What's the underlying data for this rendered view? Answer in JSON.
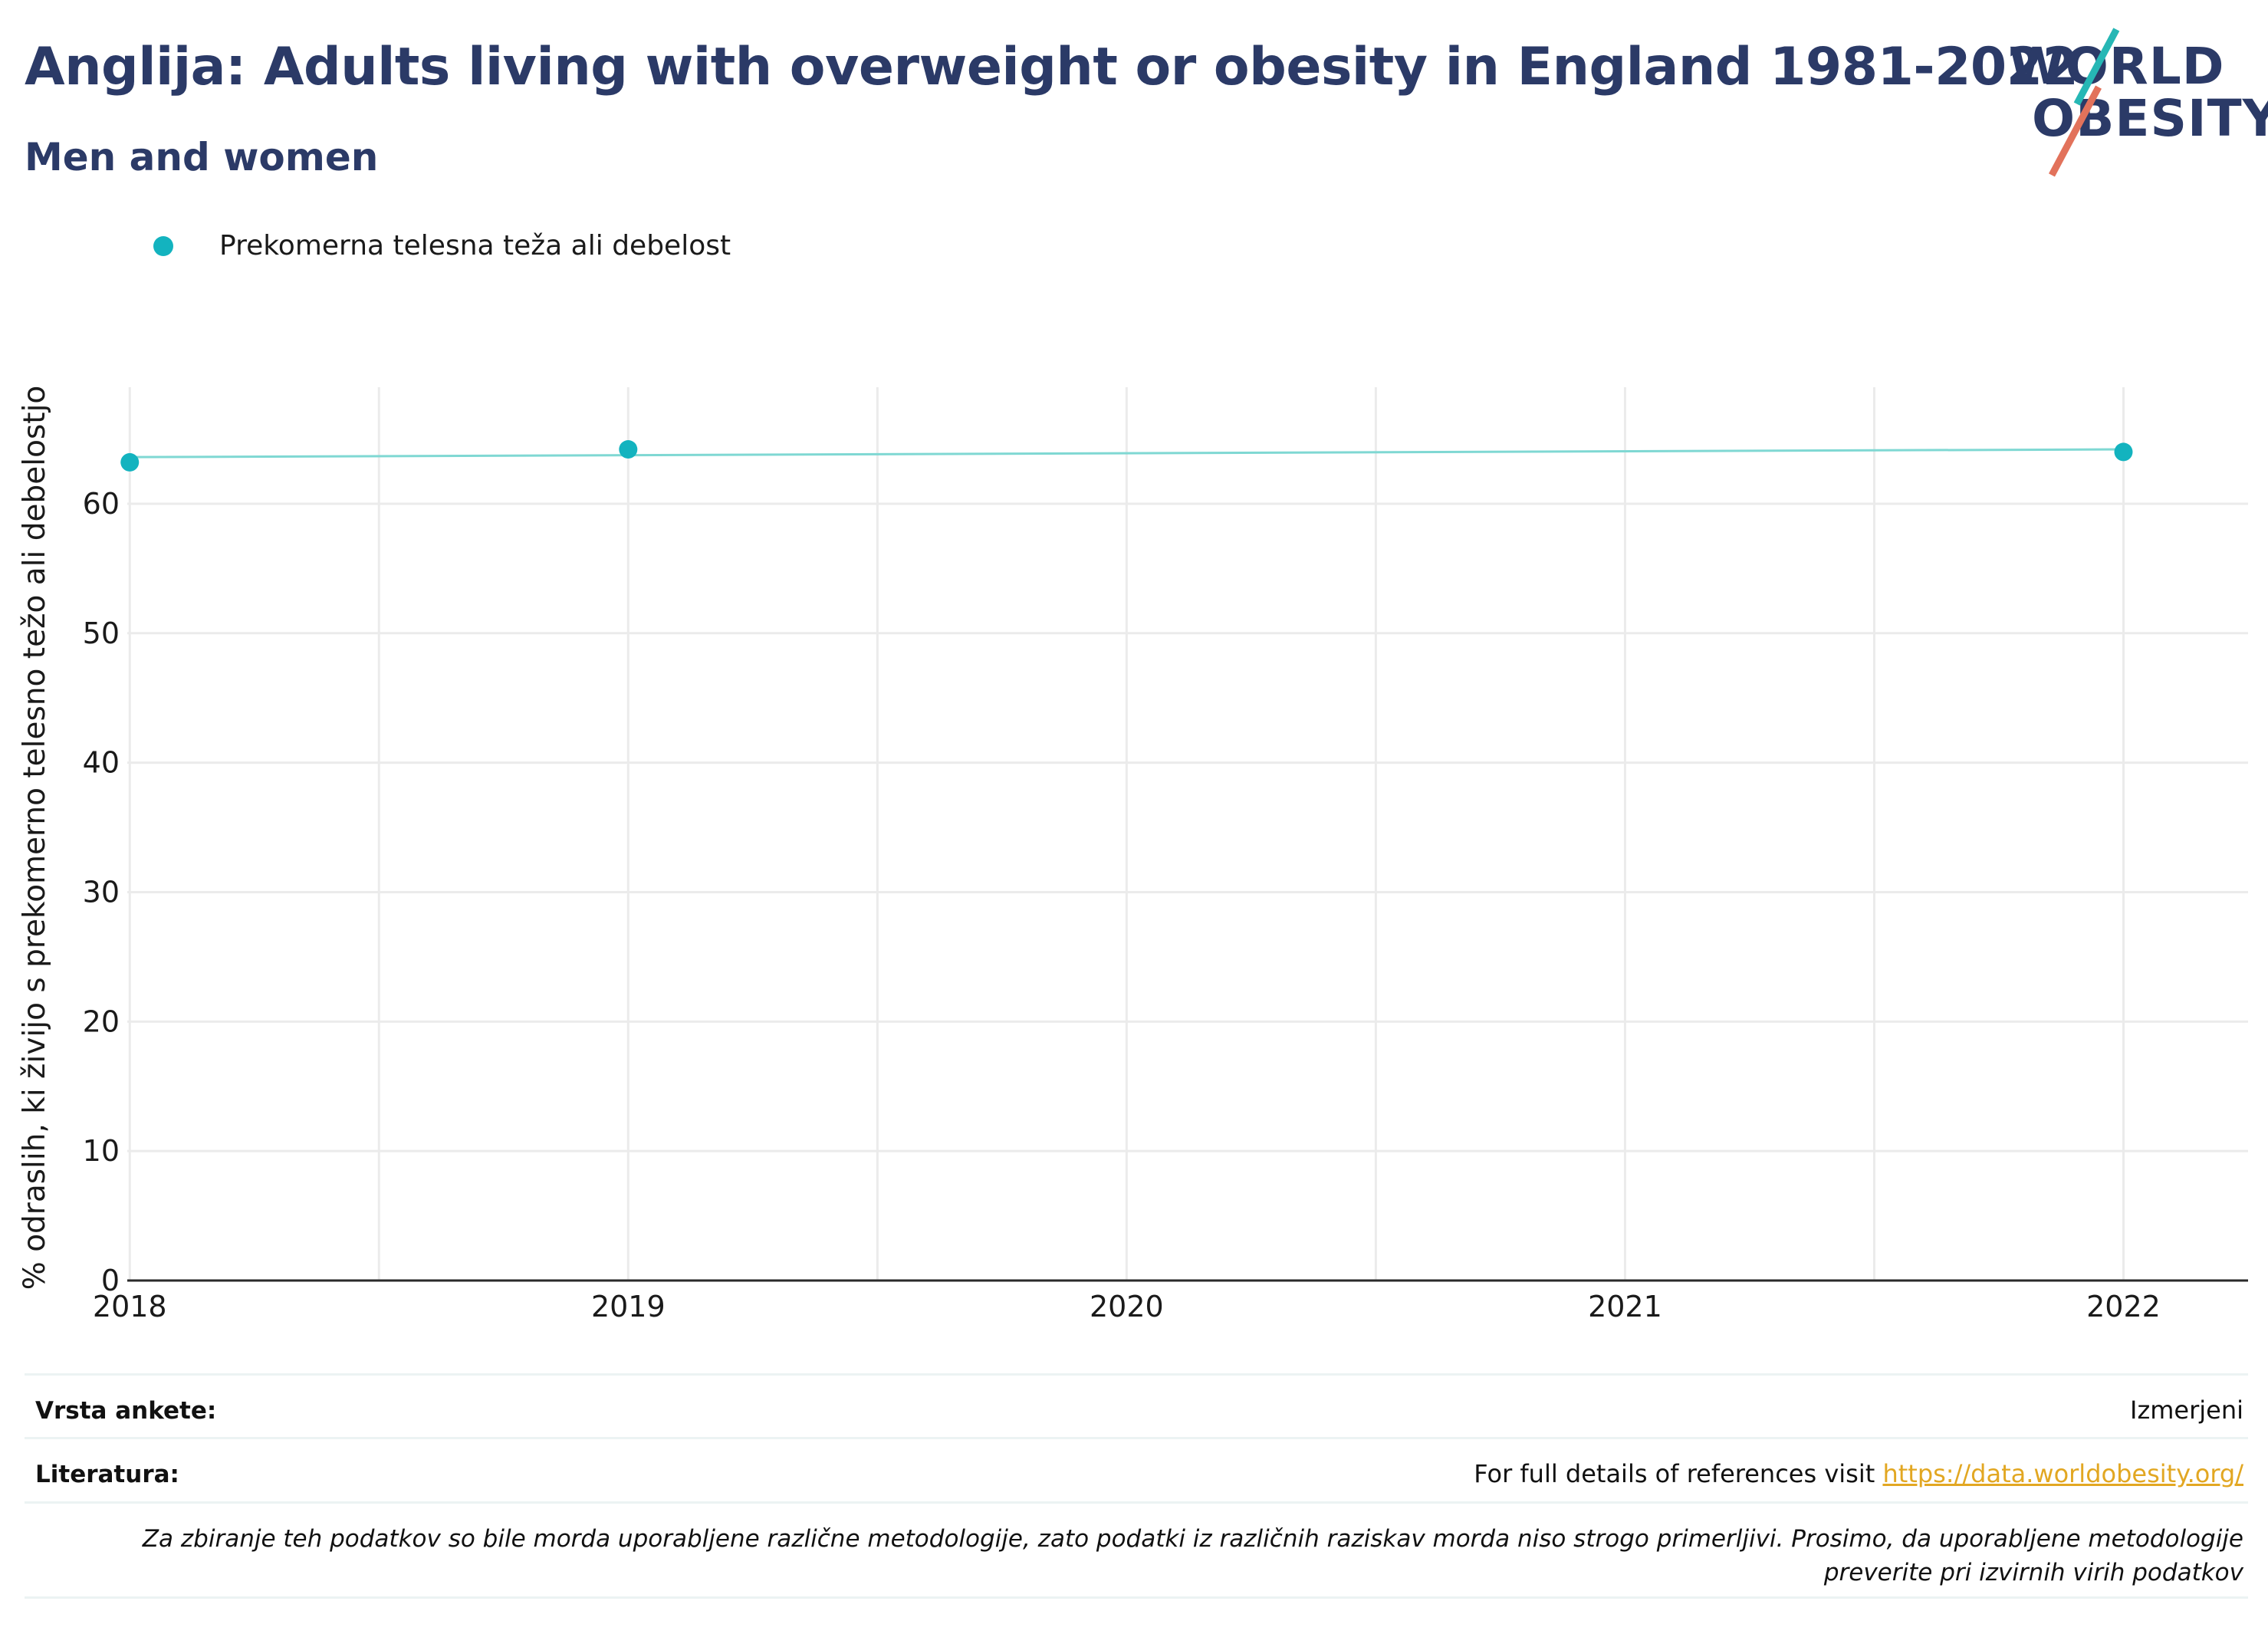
{
  "header": {
    "title": "Anglija: Adults living with overweight or obesity in England 1981-2022",
    "subtitle": "Men and women"
  },
  "logo": {
    "line1": "WORLD",
    "line2": "OBESITY",
    "colors": {
      "text": "#2b3a67",
      "teal": "#26b7b5",
      "red": "#e2725b"
    }
  },
  "legend": {
    "items": [
      {
        "label": "Prekomerna telesna teža ali debelost",
        "color": "#13b3bf"
      }
    ]
  },
  "chart_data": {
    "type": "scatter",
    "title": "Anglija: Adults living with overweight or obesity in England 1981-2022",
    "subtitle": "Men and women",
    "xlabel": "",
    "ylabel": "% odraslih, ki živijo s prekomerno telesno težo ali debelostjo",
    "xlim": [
      2017.995,
      2022.25
    ],
    "ylim": [
      0,
      69
    ],
    "x_ticks": [
      "2018",
      "2019",
      "2020",
      "2021",
      "2022"
    ],
    "y_ticks": [
      "0",
      "10",
      "20",
      "30",
      "40",
      "50",
      "60"
    ],
    "grid": true,
    "legend_position": "top-left",
    "series": [
      {
        "name": "Prekomerna telesna teža ali debelost",
        "color": "#13b3bf",
        "points": [
          {
            "x": 2018,
            "y": 63.2
          },
          {
            "x": 2019,
            "y": 64.2
          },
          {
            "x": 2022,
            "y": 64.0
          }
        ],
        "trendline": {
          "color": "#7fd8d3",
          "start": {
            "x": 2018,
            "y": 63.6
          },
          "end": {
            "x": 2022,
            "y": 64.2
          }
        }
      }
    ]
  },
  "footer": {
    "survey_label": "Vrsta ankete:",
    "survey_value": "Izmerjeni",
    "references_label": "Literatura:",
    "references_text": "For full details of references visit ",
    "references_link": "https://data.worldobesity.org/",
    "note": "Za zbiranje teh podatkov so bile morda uporabljene različne metodologije, zato podatki iz različnih raziskav morda niso strogo primerljivi. Prosimo, da uporabljene metodologije preverite pri izvirnih virih podatkov"
  }
}
